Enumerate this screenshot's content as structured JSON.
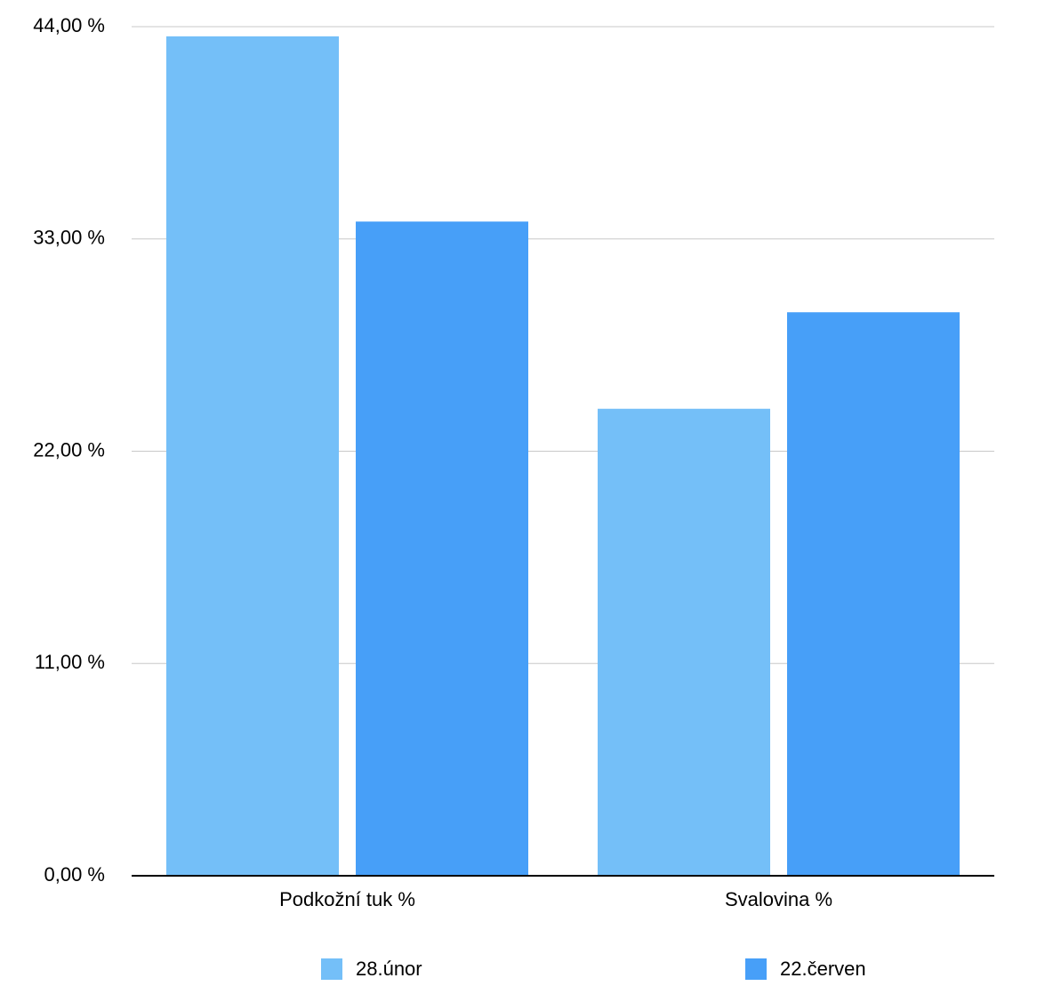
{
  "chart_data": {
    "type": "bar",
    "categories": [
      "Podkožní tuk %",
      "Svalovina %"
    ],
    "series": [
      {
        "name": "28.únor",
        "color": "#74bff8",
        "values": [
          43.5,
          24.2
        ]
      },
      {
        "name": "22.červen",
        "color": "#479ff8",
        "values": [
          33.9,
          29.2
        ]
      }
    ],
    "ylim": [
      0,
      44
    ],
    "yticks": [
      {
        "value": 0,
        "label": "0,00 %"
      },
      {
        "value": 11,
        "label": "11,00 %"
      },
      {
        "value": 22,
        "label": "22,00 %"
      },
      {
        "value": 33,
        "label": "33,00 %"
      },
      {
        "value": 44,
        "label": "44,00 %"
      }
    ],
    "grid": true,
    "legend": "bottom"
  }
}
